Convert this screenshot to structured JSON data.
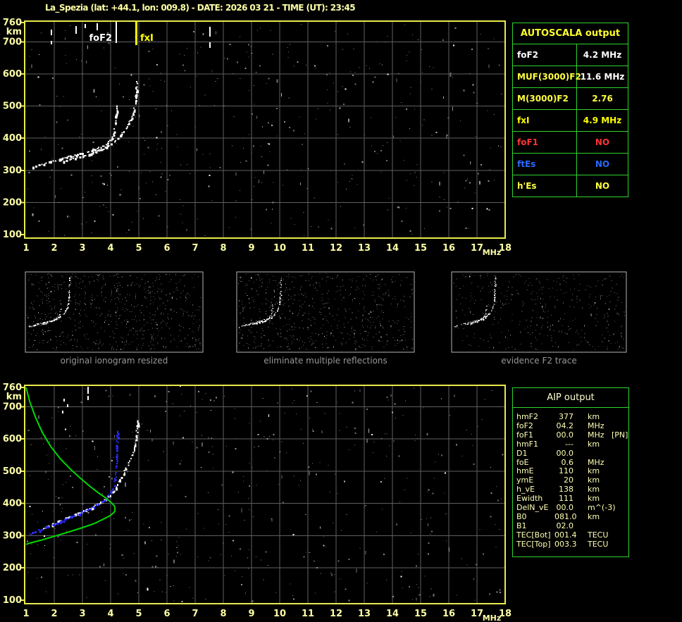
{
  "title": "La_Spezia (lat: +44.1, lon: 009.8) - DATE: 2026 03 21 - TIME (UT): 23:45",
  "colors": {
    "background": "#000000",
    "axis_text": "#ffffa6",
    "plot_border": "#e9e94d",
    "grid": "#5f5f5f",
    "table_border": "#2fd32f",
    "header_yellow": "#ffff2e",
    "value_yellow": "#ffff42",
    "white": "#ffffff",
    "red": "#ff3333",
    "blue": "#2968ff",
    "trace_green": "#00d800",
    "trace_blue": "#2b2bff",
    "caption_gray": "#989898",
    "thumbnail_border": "#b4b4b4"
  },
  "autoscala_table": {
    "header": "AUTOSCALA output",
    "rows": [
      {
        "key": "fof2",
        "label": "foF2",
        "value": "4.2 MHz",
        "color": "#ffffff",
        "value_color": "#ffffff"
      },
      {
        "key": "muf",
        "label": "MUF(3000)F2",
        "value": "11.6 MHz",
        "color": "#ffff42",
        "value_color": "#ffffff"
      },
      {
        "key": "m3000",
        "label": "M(3000)F2",
        "value": "2.76",
        "color": "#ffff42",
        "value_color": "#ffff42"
      },
      {
        "key": "fxi",
        "label": "fxI",
        "value": "4.9 MHz",
        "color": "#ffff00",
        "value_color": "#ffff00"
      },
      {
        "key": "fof1",
        "label": "foF1",
        "value": "NO",
        "color": "#ff3333",
        "value_color": "#ff3333"
      },
      {
        "key": "ftes",
        "label": "ftEs",
        "value": "NO",
        "color": "#2968ff",
        "value_color": "#2968ff"
      },
      {
        "key": "hes",
        "label": "h'Es",
        "value": "NO",
        "color": "#ffff42",
        "value_color": "#ffff42"
      }
    ]
  },
  "aip_table": {
    "header": "AIP output",
    "rows": [
      {
        "label": "hmF2",
        "value": "377",
        "unit": "km",
        "extra": ""
      },
      {
        "label": "foF2",
        "value": "04.2",
        "unit": "MHz",
        "extra": ""
      },
      {
        "label": "foF1",
        "value": "00.0",
        "unit": "MHz",
        "extra": "[PN]"
      },
      {
        "label": "hmF1",
        "value": "---",
        "unit": "km",
        "extra": ""
      },
      {
        "label": "D1",
        "value": "00.0",
        "unit": "",
        "extra": ""
      },
      {
        "label": "foE",
        "value": "0.6",
        "unit": "MHz",
        "extra": ""
      },
      {
        "label": "hmE",
        "value": "110",
        "unit": "km",
        "extra": ""
      },
      {
        "label": "ymE",
        "value": "20",
        "unit": "km",
        "extra": ""
      },
      {
        "label": "h_vE",
        "value": "138",
        "unit": "km",
        "extra": ""
      },
      {
        "label": "Ewidth",
        "value": "111",
        "unit": "km",
        "extra": ""
      },
      {
        "label": "DelN_vE",
        "value": "00.0",
        "unit": "m^(-3)",
        "extra": ""
      },
      {
        "label": "B0",
        "value": "081.0",
        "unit": "km",
        "extra": ""
      },
      {
        "label": "B1",
        "value": "02.0",
        "unit": "",
        "extra": ""
      },
      {
        "label": "TEC[Bot]",
        "value": "001.4",
        "unit": "TECU",
        "extra": ""
      },
      {
        "label": "TEC[Top]",
        "value": "003.3",
        "unit": "TECU",
        "extra": ""
      }
    ]
  },
  "thumbnails": [
    {
      "caption": "original ionogram resized"
    },
    {
      "caption": "eliminate multiple reflections"
    },
    {
      "caption": "evidence F2 trace"
    }
  ],
  "chart_data": [
    {
      "id": "top_ionogram",
      "type": "scatter",
      "title": "",
      "xlabel": "MHz",
      "ylabel": "km",
      "xlim": [
        1,
        18
      ],
      "ylim": [
        100,
        760
      ],
      "x_ticks": [
        1,
        2,
        3,
        4,
        5,
        6,
        7,
        8,
        9,
        10,
        11,
        12,
        13,
        14,
        15,
        16,
        17,
        18
      ],
      "y_ticks": [
        760,
        700,
        600,
        500,
        400,
        300,
        200,
        100
      ],
      "grid": true,
      "markers": [
        {
          "label": "foF2",
          "mhz": 4.2,
          "color": "#ffffff"
        },
        {
          "label": "fxI",
          "mhz": 4.9,
          "color": "#ffff00"
        }
      ],
      "series": [
        {
          "name": "F2-trace-O-mode",
          "color": "#ffffff",
          "points": [
            [
              1.25,
              313
            ],
            [
              1.53,
              319
            ],
            [
              1.83,
              328
            ],
            [
              2.2,
              337
            ],
            [
              2.58,
              346
            ],
            [
              2.95,
              354
            ],
            [
              3.33,
              365
            ],
            [
              3.63,
              374
            ],
            [
              3.88,
              387
            ],
            [
              4.03,
              403
            ],
            [
              4.1,
              422
            ],
            [
              4.15,
              449
            ],
            [
              4.18,
              475
            ],
            [
              4.2,
              501
            ]
          ]
        },
        {
          "name": "F2-trace-X-mode",
          "color": "#ffffff",
          "points": [
            [
              2.33,
              330
            ],
            [
              2.7,
              339
            ],
            [
              3.08,
              348
            ],
            [
              3.45,
              359
            ],
            [
              3.83,
              374
            ],
            [
              4.13,
              392
            ],
            [
              4.38,
              414
            ],
            [
              4.58,
              440
            ],
            [
              4.73,
              466
            ],
            [
              4.83,
              497
            ],
            [
              4.88,
              523
            ],
            [
              4.9,
              550
            ],
            [
              4.88,
              558
            ],
            [
              4.92,
              572
            ],
            [
              4.9,
              585
            ]
          ]
        }
      ]
    },
    {
      "id": "bottom_ionogram",
      "type": "scatter",
      "title": "",
      "xlabel": "MHz",
      "ylabel": "km",
      "xlim": [
        1,
        18
      ],
      "ylim": [
        100,
        760
      ],
      "x_ticks": [
        1,
        2,
        3,
        4,
        5,
        6,
        7,
        8,
        9,
        10,
        11,
        12,
        13,
        14,
        15,
        16,
        17,
        18
      ],
      "y_ticks": [
        760,
        700,
        600,
        500,
        400,
        300,
        200,
        100
      ],
      "grid": true,
      "series": [
        {
          "name": "measured-trace",
          "color": "#ffffff",
          "points": [
            [
              1.53,
              323
            ],
            [
              1.95,
              338
            ],
            [
              2.38,
              356
            ],
            [
              2.83,
              371
            ],
            [
              3.2,
              384
            ],
            [
              3.45,
              395
            ],
            [
              3.7,
              408
            ],
            [
              3.95,
              426
            ],
            [
              4.2,
              454
            ],
            [
              4.45,
              498
            ],
            [
              4.7,
              541
            ],
            [
              4.83,
              574
            ],
            [
              4.9,
              611
            ],
            [
              4.93,
              644
            ],
            [
              4.95,
              660
            ]
          ]
        },
        {
          "name": "restored-O-trace",
          "color": "#2b2bff",
          "points": [
            [
              1.03,
              305
            ],
            [
              1.45,
              319
            ],
            [
              1.83,
              332
            ],
            [
              2.2,
              345
            ],
            [
              2.58,
              360
            ],
            [
              2.95,
              373
            ],
            [
              3.28,
              386
            ],
            [
              3.58,
              402
            ],
            [
              3.83,
              419
            ],
            [
              4.0,
              437
            ],
            [
              4.1,
              458
            ],
            [
              4.15,
              485
            ],
            [
              4.18,
              511
            ],
            [
              4.2,
              541
            ],
            [
              4.2,
              574
            ],
            [
              4.22,
              607
            ],
            [
              4.23,
              624
            ]
          ]
        },
        {
          "name": "electron-density-profile",
          "color": "#00d800",
          "points": [
            [
              1.0,
              760
            ],
            [
              1.13,
              716
            ],
            [
              1.33,
              668
            ],
            [
              1.58,
              620
            ],
            [
              1.88,
              576
            ],
            [
              2.23,
              537
            ],
            [
              2.58,
              506
            ],
            [
              2.93,
              478
            ],
            [
              3.28,
              452
            ],
            [
              3.58,
              432
            ],
            [
              3.83,
              417
            ],
            [
              4.0,
              404
            ],
            [
              4.13,
              393
            ],
            [
              4.16,
              384
            ],
            [
              4.13,
              373
            ],
            [
              3.98,
              362
            ],
            [
              3.73,
              351
            ],
            [
              3.43,
              338
            ],
            [
              3.0,
              325
            ],
            [
              2.53,
              312
            ],
            [
              2.03,
              299
            ],
            [
              1.53,
              286
            ],
            [
              1.13,
              277
            ],
            [
              1.0,
              273
            ]
          ]
        }
      ]
    },
    {
      "id": "thumbnail_ionograms",
      "type": "scatter",
      "panels": [
        "original ionogram resized",
        "eliminate multiple reflections",
        "evidence F2 trace"
      ],
      "note": "miniature versions of the top ionogram trace with speckle noise"
    }
  ]
}
